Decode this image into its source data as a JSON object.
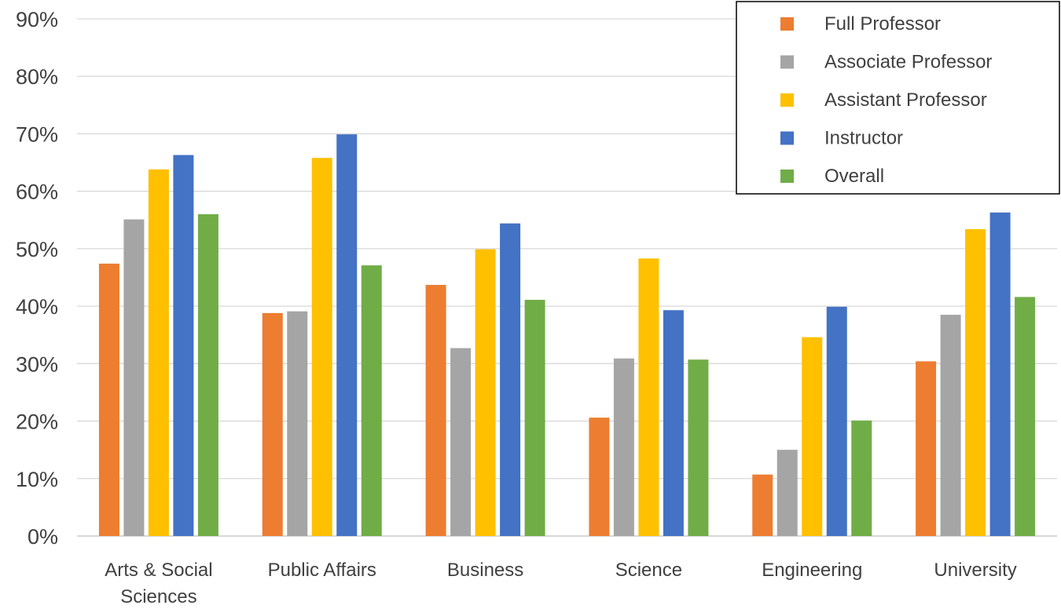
{
  "chart_data": {
    "type": "bar",
    "categories": [
      [
        "Arts & Social",
        "Sciences"
      ],
      [
        "Public Affairs"
      ],
      [
        "Business"
      ],
      [
        "Science"
      ],
      [
        "Engineering"
      ],
      [
        "University"
      ]
    ],
    "series": [
      {
        "name": "Full Professor",
        "color": "#ED7D31",
        "values": [
          47.4,
          38.8,
          43.7,
          20.6,
          10.7,
          30.4
        ]
      },
      {
        "name": "Associate Professor",
        "color": "#A5A5A5",
        "values": [
          55.1,
          39.1,
          32.7,
          30.9,
          15.0,
          38.5
        ]
      },
      {
        "name": "Assistant Professor",
        "color": "#FFC000",
        "values": [
          63.8,
          65.8,
          49.9,
          48.3,
          34.6,
          53.4
        ]
      },
      {
        "name": "Instructor",
        "color": "#4472C4",
        "values": [
          66.3,
          69.9,
          54.4,
          39.3,
          39.9,
          56.3
        ]
      },
      {
        "name": "Overall",
        "color": "#70AD47",
        "values": [
          56.0,
          47.1,
          41.1,
          30.7,
          20.1,
          41.6
        ]
      }
    ],
    "ylim": [
      0,
      90
    ],
    "yticks": [
      "0%",
      "10%",
      "20%",
      "30%",
      "40%",
      "50%",
      "60%",
      "70%",
      "80%",
      "90%"
    ],
    "grid": true,
    "legend_position": "top-right",
    "title": "",
    "xlabel": "",
    "ylabel": ""
  }
}
